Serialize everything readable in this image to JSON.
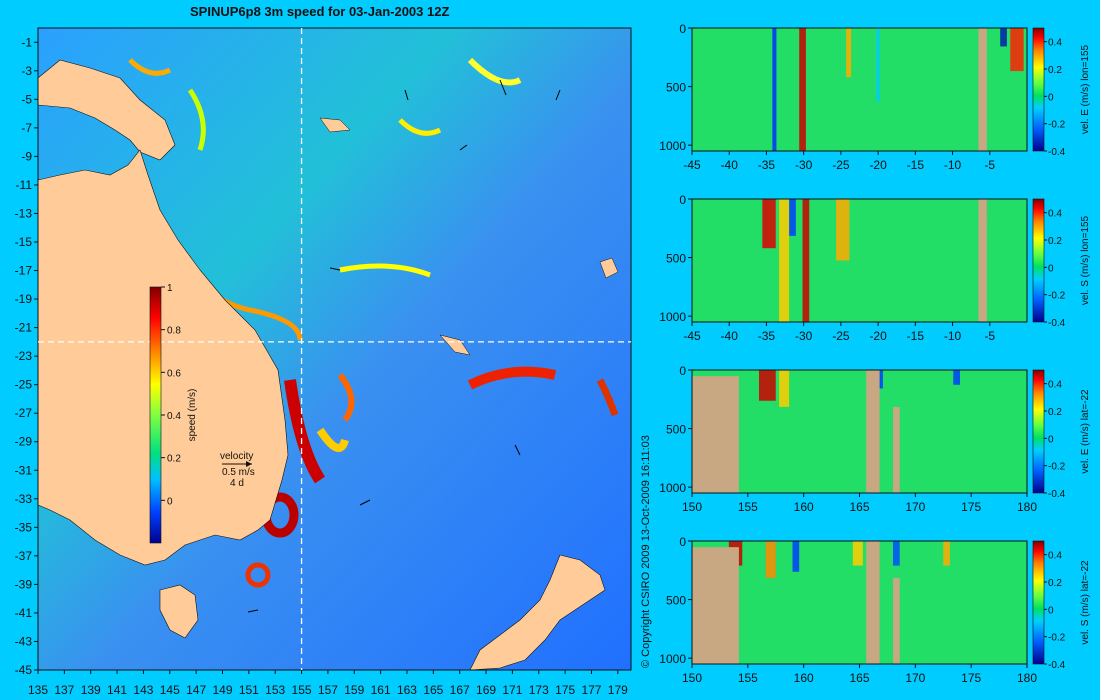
{
  "title": "SPINUP6p8 3m speed for 03-Jan-2003 12Z",
  "copyright": "© Copyright CSIRO 2009  13-Oct-2009 16:11:03",
  "colors": {
    "background": "#00ccff",
    "land": "#ffcc99",
    "section_land": "#c8a882",
    "crosshair": "#ffffff"
  },
  "chart_data": [
    {
      "type": "heatmap",
      "title": "SPINUP6p8 3m speed for 03-Jan-2003 12Z",
      "x_ticks": [
        135,
        137,
        139,
        141,
        143,
        145,
        147,
        149,
        151,
        153,
        155,
        157,
        159,
        161,
        163,
        165,
        167,
        169,
        171,
        173,
        175,
        177,
        179
      ],
      "y_ticks": [
        -1,
        -3,
        -5,
        -7,
        -9,
        -11,
        -13,
        -15,
        -17,
        -19,
        -21,
        -23,
        -25,
        -27,
        -29,
        -31,
        -33,
        -35,
        -37,
        -39,
        -41,
        -43,
        -45
      ],
      "xlim": [
        135,
        180
      ],
      "ylim": [
        -45,
        0
      ],
      "crosshair": {
        "lon": 155,
        "lat": -22
      },
      "colorbar": {
        "label": "speed (m/s)",
        "ticks": [
          0,
          0.2,
          0.4,
          0.6,
          0.8,
          1
        ],
        "range": [
          -0.2,
          1
        ]
      },
      "velocity_key": {
        "label": "velocity",
        "speed": "0.5 m/s",
        "interval": "4 d"
      }
    },
    {
      "type": "heatmap",
      "title": "",
      "xlabel": "",
      "ylabel": "",
      "x_ticks": [
        -45,
        -40,
        -35,
        -30,
        -25,
        -20,
        -15,
        -10,
        -5
      ],
      "y_ticks": [
        0,
        500,
        1000
      ],
      "xlim": [
        -45,
        0
      ],
      "ylim": [
        1050,
        0
      ],
      "colorbar": {
        "label": "vel. E (m/s) lon=155",
        "ticks": [
          -0.4,
          -0.2,
          0,
          0.2,
          0.4
        ],
        "range": [
          -0.4,
          0.5
        ]
      }
    },
    {
      "type": "heatmap",
      "title": "",
      "xlabel": "",
      "ylabel": "",
      "x_ticks": [
        -45,
        -40,
        -35,
        -30,
        -25,
        -20,
        -15,
        -10,
        -5
      ],
      "y_ticks": [
        0,
        500,
        1000
      ],
      "xlim": [
        -45,
        0
      ],
      "ylim": [
        1050,
        0
      ],
      "colorbar": {
        "label": "vel. S (m/s) lon=155",
        "ticks": [
          -0.4,
          -0.2,
          0,
          0.2,
          0.4
        ],
        "range": [
          -0.4,
          0.5
        ]
      }
    },
    {
      "type": "heatmap",
      "title": "",
      "xlabel": "",
      "ylabel": "",
      "x_ticks": [
        150,
        155,
        160,
        165,
        170,
        175,
        180
      ],
      "y_ticks": [
        0,
        500,
        1000
      ],
      "xlim": [
        150,
        180
      ],
      "ylim": [
        1050,
        0
      ],
      "colorbar": {
        "label": "vel. E (m/s) lat=-22",
        "ticks": [
          -0.4,
          -0.2,
          0,
          0.2,
          0.4
        ],
        "range": [
          -0.4,
          0.5
        ]
      }
    },
    {
      "type": "heatmap",
      "title": "",
      "xlabel": "",
      "ylabel": "",
      "x_ticks": [
        150,
        155,
        160,
        165,
        170,
        175,
        180
      ],
      "y_ticks": [
        0,
        500,
        1000
      ],
      "xlim": [
        150,
        180
      ],
      "ylim": [
        1050,
        0
      ],
      "colorbar": {
        "label": "vel. S (m/s) lat=-22",
        "ticks": [
          -0.4,
          -0.2,
          0,
          0.2,
          0.4
        ],
        "range": [
          -0.4,
          0.5
        ]
      }
    }
  ]
}
